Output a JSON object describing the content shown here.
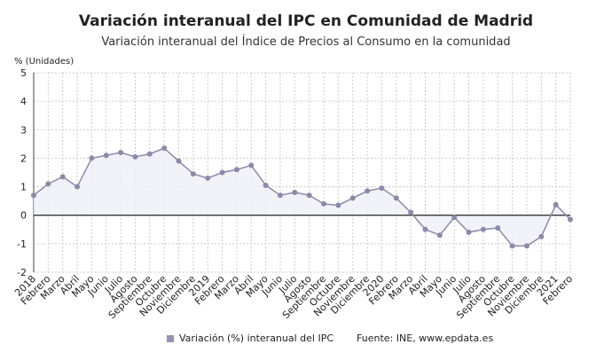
{
  "chart_data": {
    "type": "area",
    "title": "Variación interanual del IPC en Comunidad de Madrid",
    "subtitle": "Variación interanual del Índice de Precios al Consumo en la comunidad",
    "ylabel": "% (Unidades)",
    "ylim": [
      -2,
      5
    ],
    "yticks": [
      -2,
      -1,
      0,
      1,
      2,
      3,
      4,
      5
    ],
    "grid": true,
    "legend": "bottom",
    "color": "#8a8aaa",
    "categories": [
      "2018",
      "Febrero",
      "Marzo",
      "Abril",
      "Mayo",
      "Junio",
      "Julio",
      "Agosto",
      "Septiembre",
      "Octubre",
      "Noviembre",
      "Diciembre",
      "2019",
      "Febrero",
      "Marzo",
      "Abril",
      "Mayo",
      "Junio",
      "Julio",
      "Agosto",
      "Septiembre",
      "Octubre",
      "Noviembre",
      "Diciembre",
      "2020",
      "Febrero",
      "Marzo",
      "Abril",
      "Mayo",
      "Junio",
      "Julio",
      "Agosto",
      "Septiembre",
      "Octubre",
      "Noviembre",
      "Diciembre",
      "2021",
      "Febrero"
    ],
    "series": [
      {
        "name": "Variación (%) interanual del IPC",
        "values": [
          0.7,
          1.1,
          1.35,
          1.0,
          2.0,
          2.1,
          2.2,
          2.05,
          2.15,
          2.35,
          1.9,
          1.45,
          1.3,
          1.5,
          1.6,
          1.75,
          1.05,
          0.7,
          0.8,
          0.7,
          0.4,
          0.35,
          0.6,
          0.85,
          0.95,
          0.6,
          0.1,
          -0.5,
          -0.7,
          -0.08,
          -0.6,
          -0.5,
          -0.45,
          -1.08,
          -1.08,
          -0.75,
          0.37,
          -0.15
        ]
      }
    ]
  },
  "source": "Fuente: INE, www.epdata.es"
}
